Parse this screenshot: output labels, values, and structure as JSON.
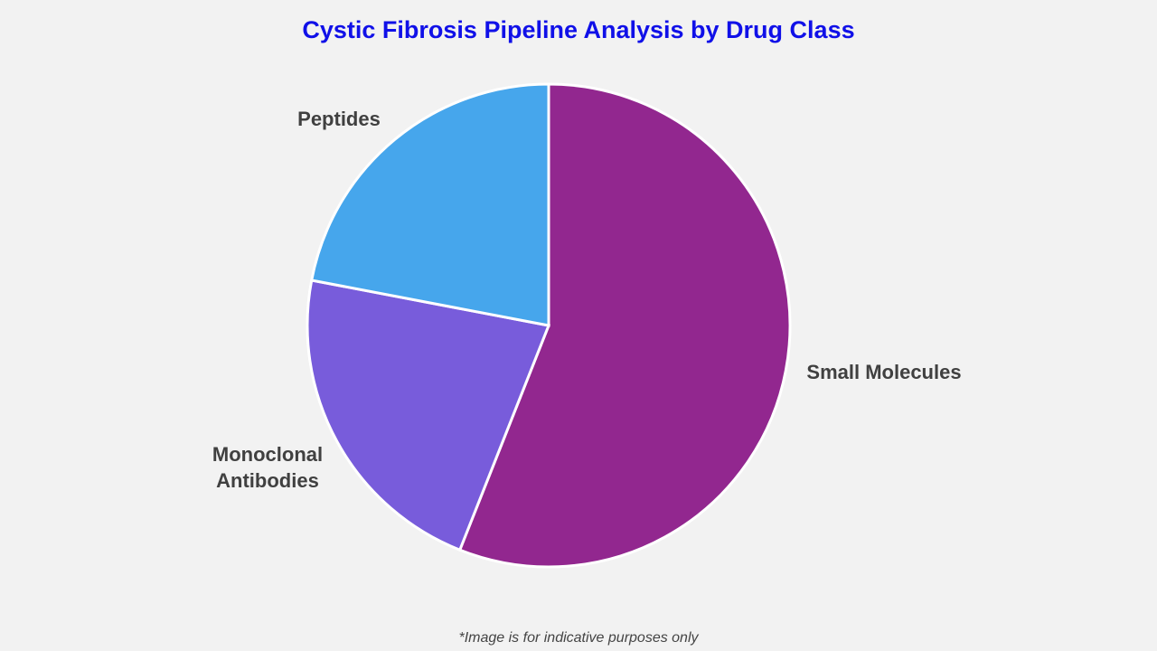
{
  "chart_data": {
    "type": "pie",
    "title": "Cystic Fibrosis Pipeline Analysis by Drug Class",
    "slices": [
      {
        "label": "Small Molecules",
        "value": 56,
        "color": "#92278f"
      },
      {
        "label": "Monoclonal Antibodies",
        "value": 22,
        "color": "#785cdb"
      },
      {
        "label": "Peptides",
        "value": 22,
        "color": "#46a6ec"
      }
    ],
    "label_lines": [
      [
        "Small Molecules"
      ],
      [
        "Monoclonal",
        "Antibodies"
      ],
      [
        "Peptides"
      ]
    ],
    "legend": "none",
    "start": "12 o'clock, clockwise"
  },
  "footnote": "*Image is for indicative purposes only"
}
